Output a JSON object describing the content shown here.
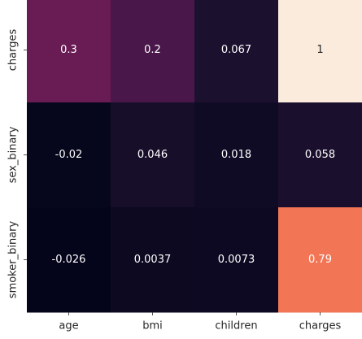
{
  "chart_data": {
    "type": "heatmap",
    "x_labels": [
      "age",
      "bmi",
      "children",
      "charges"
    ],
    "y_labels": [
      "charges",
      "sex_binary",
      "smoker_binary"
    ],
    "values": [
      [
        0.3,
        0.2,
        0.067,
        1
      ],
      [
        -0.02,
        0.046,
        0.018,
        0.058
      ],
      [
        -0.026,
        0.0037,
        0.0073,
        0.79
      ]
    ],
    "cell_labels": [
      [
        "0.3",
        "0.2",
        "0.067",
        "1"
      ],
      [
        "-0.02",
        "0.046",
        "0.018",
        "0.058"
      ],
      [
        "-0.026",
        "0.0037",
        "0.0073",
        "0.79"
      ]
    ],
    "colormap": "rocket",
    "vmin": -0.03,
    "vmax": 1,
    "colorbar": false,
    "annotated": true
  }
}
